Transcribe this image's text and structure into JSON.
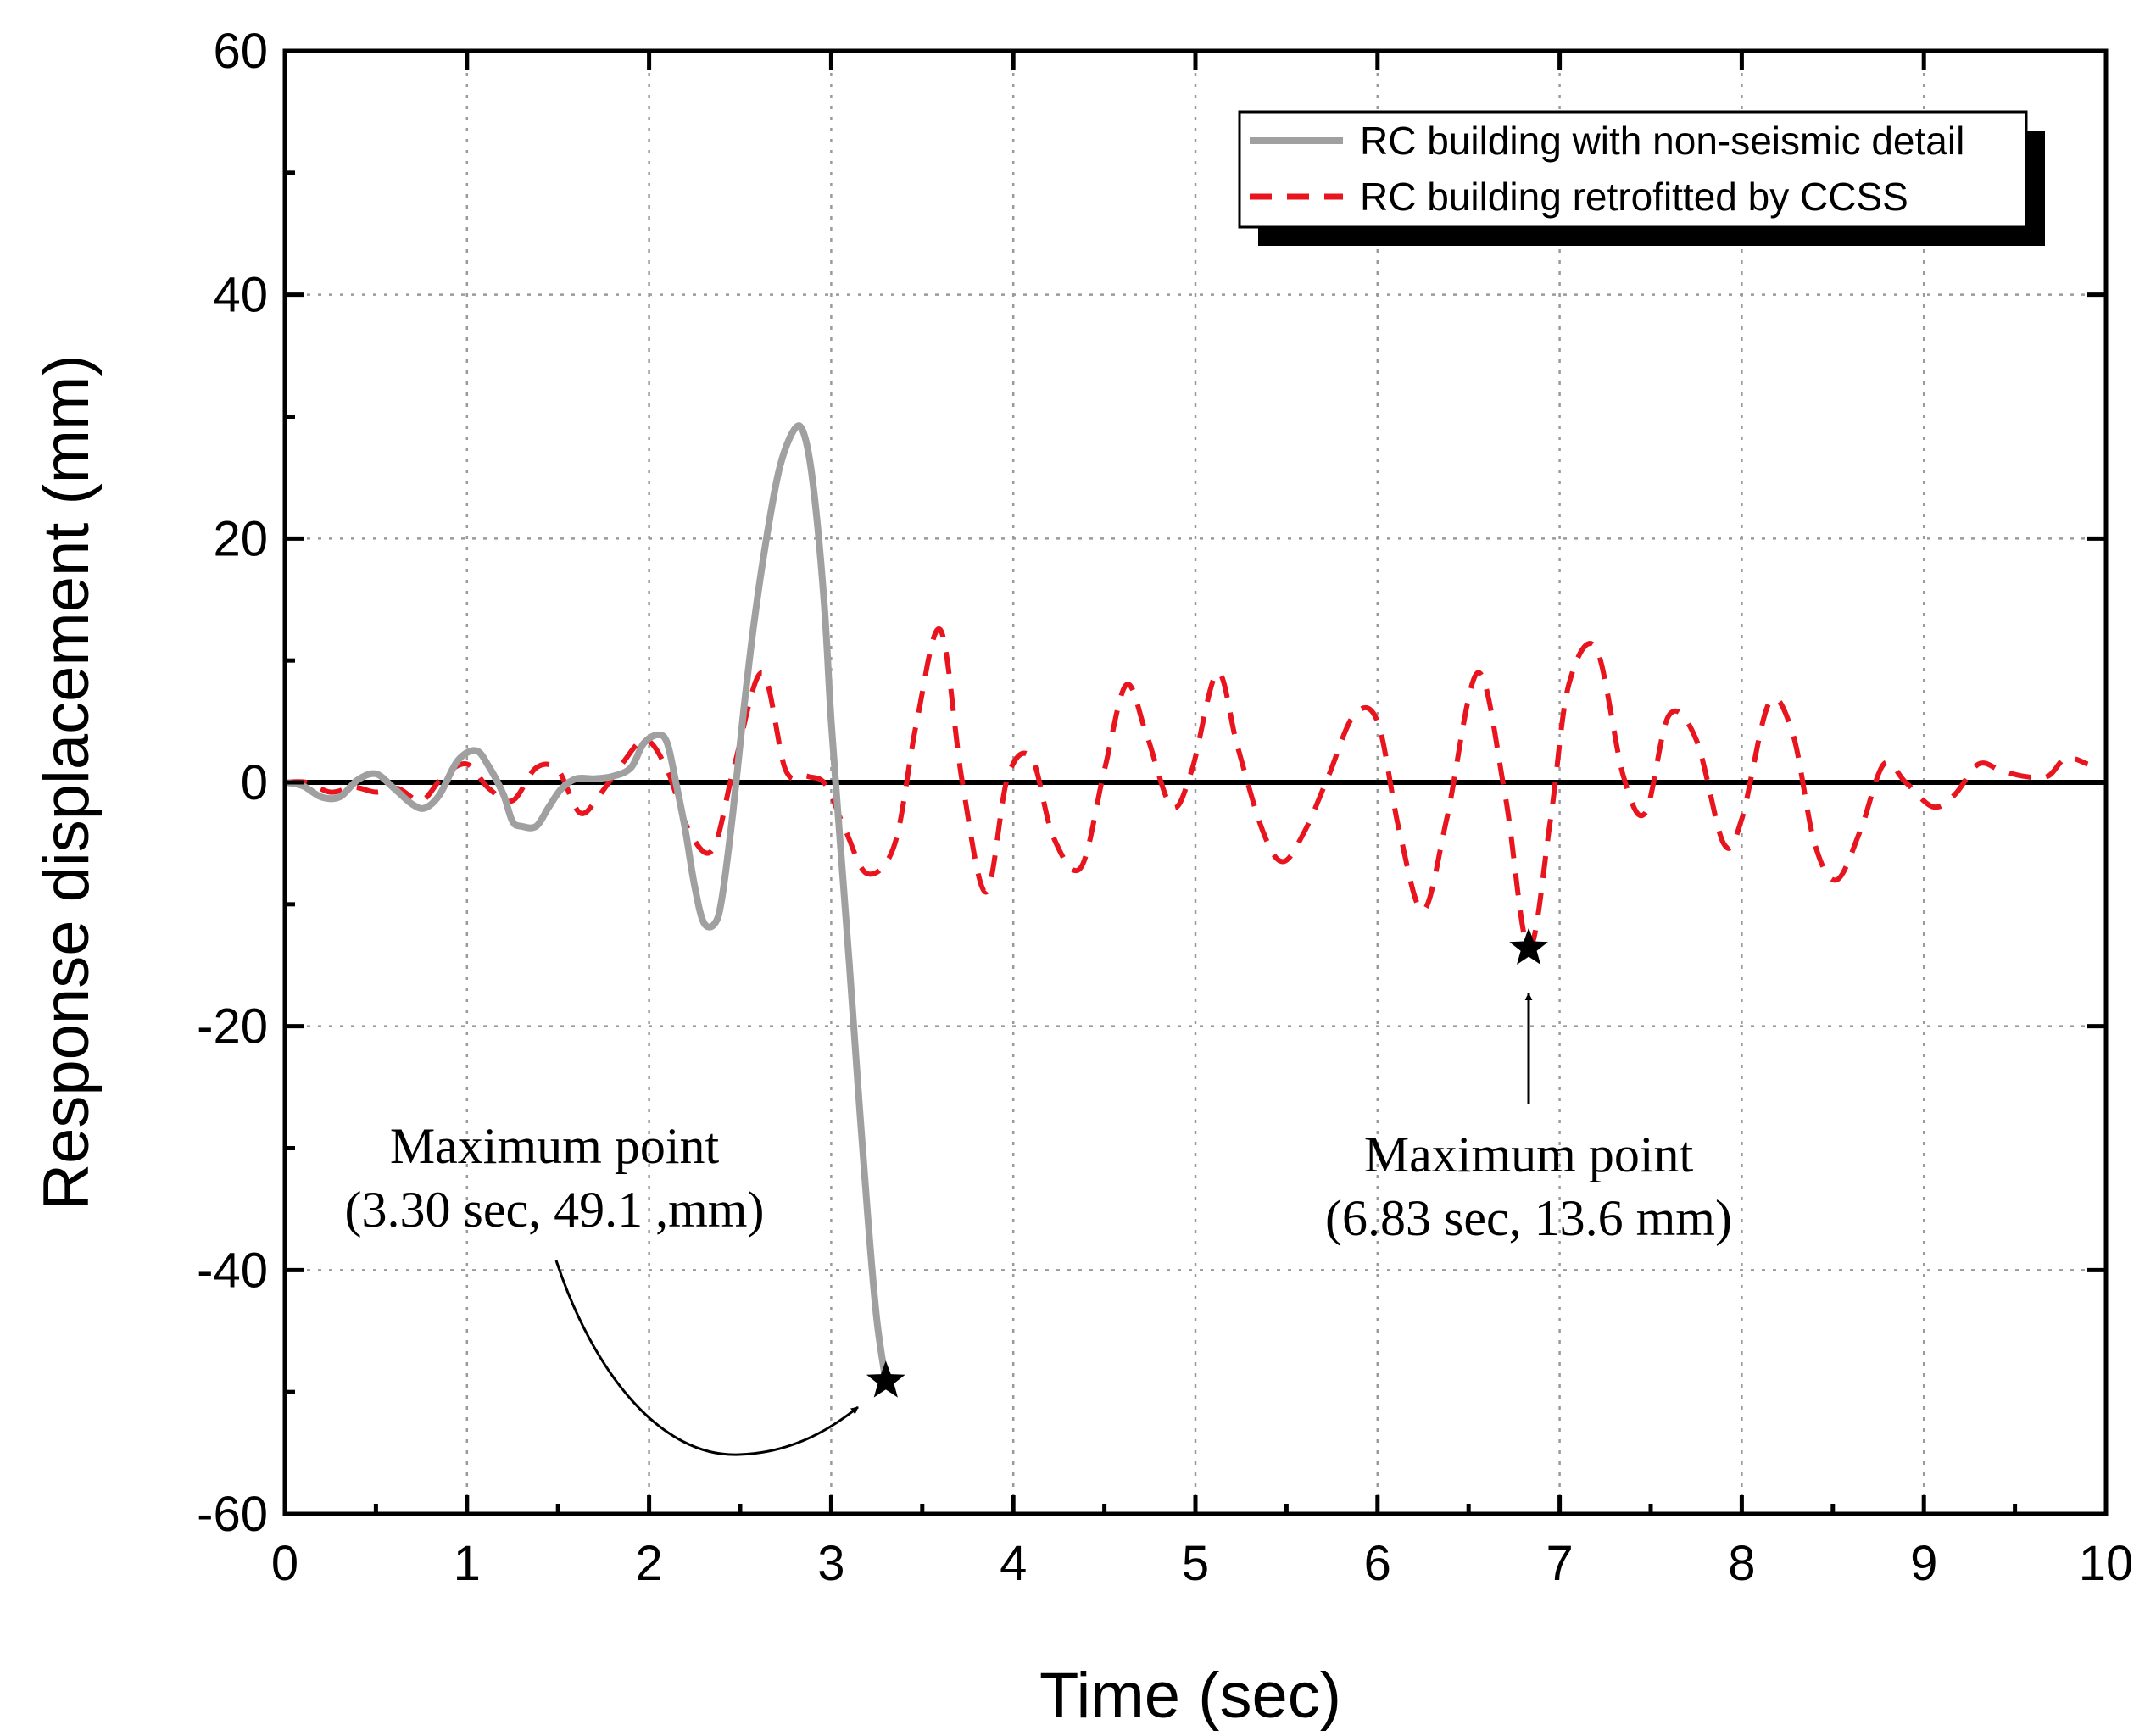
{
  "chart_data": {
    "type": "line",
    "xlabel": "Time (sec)",
    "ylabel": "Response displacement (mm)",
    "xlim": [
      0,
      10
    ],
    "ylim": [
      -60,
      60
    ],
    "x_ticks": [
      0,
      1,
      2,
      3,
      4,
      5,
      6,
      7,
      8,
      9,
      10
    ],
    "y_ticks": [
      -60,
      -40,
      -20,
      0,
      20,
      40,
      60
    ],
    "grid": true,
    "legend_position": "top-right",
    "series": [
      {
        "name": "RC building with non-seismic detail",
        "color": "#a0a0a0",
        "style": "solid",
        "x": [
          0,
          0.1,
          0.2,
          0.3,
          0.4,
          0.5,
          0.6,
          0.7,
          0.77,
          0.85,
          0.95,
          1.05,
          1.12,
          1.2,
          1.25,
          1.3,
          1.38,
          1.45,
          1.52,
          1.6,
          1.7,
          1.8,
          1.9,
          1.97,
          2.05,
          2.1,
          2.15,
          2.2,
          2.25,
          2.3,
          2.36,
          2.4,
          2.46,
          2.52,
          2.58,
          2.65,
          2.72,
          2.8,
          2.85,
          2.9,
          2.96,
          3.0,
          3.05,
          3.1,
          3.15,
          3.2,
          3.25,
          3.3
        ],
        "y": [
          0,
          -0.3,
          -1.2,
          -1.2,
          0.2,
          0.7,
          -0.5,
          -1.8,
          -2.1,
          -1.0,
          1.8,
          2.6,
          1.3,
          -1.0,
          -3.2,
          -3.6,
          -3.6,
          -2.0,
          -0.5,
          0.3,
          0.3,
          0.5,
          1.2,
          3.2,
          3.9,
          3.2,
          -0.2,
          -4.0,
          -8.5,
          -11.5,
          -11.6,
          -9.5,
          -2.5,
          6.0,
          13.5,
          20.5,
          26.0,
          29.0,
          28.6,
          24.5,
          15.0,
          5.0,
          -5.0,
          -15.0,
          -25.5,
          -35.5,
          -44.0,
          -49.1
        ]
      },
      {
        "name": "RC building retrofitted by CCSS",
        "color": "#e8141e",
        "style": "dashed",
        "x": [
          0,
          0.12,
          0.25,
          0.38,
          0.5,
          0.62,
          0.75,
          0.87,
          1.0,
          1.12,
          1.25,
          1.38,
          1.5,
          1.62,
          1.73,
          1.85,
          1.98,
          2.1,
          2.22,
          2.35,
          2.47,
          2.62,
          2.75,
          2.87,
          2.97,
          3.08,
          3.2,
          3.35,
          3.47,
          3.6,
          3.72,
          3.85,
          3.97,
          4.1,
          4.22,
          4.37,
          4.5,
          4.62,
          4.73,
          4.87,
          4.98,
          5.12,
          5.23,
          5.37,
          5.48,
          5.6,
          5.73,
          5.87,
          6.0,
          6.12,
          6.25,
          6.38,
          6.55,
          6.7,
          6.83,
          6.95,
          7.05,
          7.2,
          7.35,
          7.47,
          7.6,
          7.75,
          7.9,
          8.0,
          8.15,
          8.28,
          8.4,
          8.52,
          8.65,
          8.78,
          8.9,
          9.05,
          9.17,
          9.3,
          9.42,
          9.55,
          9.68,
          9.78,
          9.9
        ],
        "y": [
          0,
          0,
          -0.8,
          -0.4,
          -0.8,
          -0.5,
          -1.5,
          0.5,
          1.5,
          -0.5,
          -1.5,
          1.2,
          1.0,
          -2.5,
          -1.0,
          1.5,
          3.5,
          1.0,
          -4.0,
          -5.5,
          1.5,
          9.0,
          1.0,
          0.5,
          -0.2,
          -4.0,
          -7.5,
          -5.0,
          5.0,
          12.5,
          0.0,
          -9.0,
          0.5,
          2.0,
          -4.5,
          -7.0,
          1.0,
          8.0,
          4.0,
          -2.0,
          1.0,
          9.0,
          3.0,
          -4.0,
          -6.5,
          -4.0,
          0.5,
          5.5,
          5.0,
          -4.0,
          -10.5,
          -3.0,
          9.0,
          -1.0,
          -13.6,
          -3.0,
          8.0,
          11.0,
          0.5,
          -2.5,
          5.5,
          3.5,
          -5.0,
          -3.0,
          6.5,
          4.0,
          -5.0,
          -8.0,
          -4.0,
          1.5,
          0.0,
          -2.0,
          -1.0,
          1.5,
          1.0,
          0.5,
          0.5,
          2.0,
          1.5
        ]
      }
    ],
    "markers": [
      {
        "x": 3.3,
        "y": -49.1,
        "symbol": "star"
      },
      {
        "x": 6.83,
        "y": -13.6,
        "symbol": "star"
      }
    ],
    "annotations": [
      {
        "line1": "Maximum point",
        "line2": "(3.30 sec, 49.1 ,mm)"
      },
      {
        "line1": "Maximum point",
        "line2": "(6.83 sec, 13.6 mm)"
      }
    ]
  }
}
